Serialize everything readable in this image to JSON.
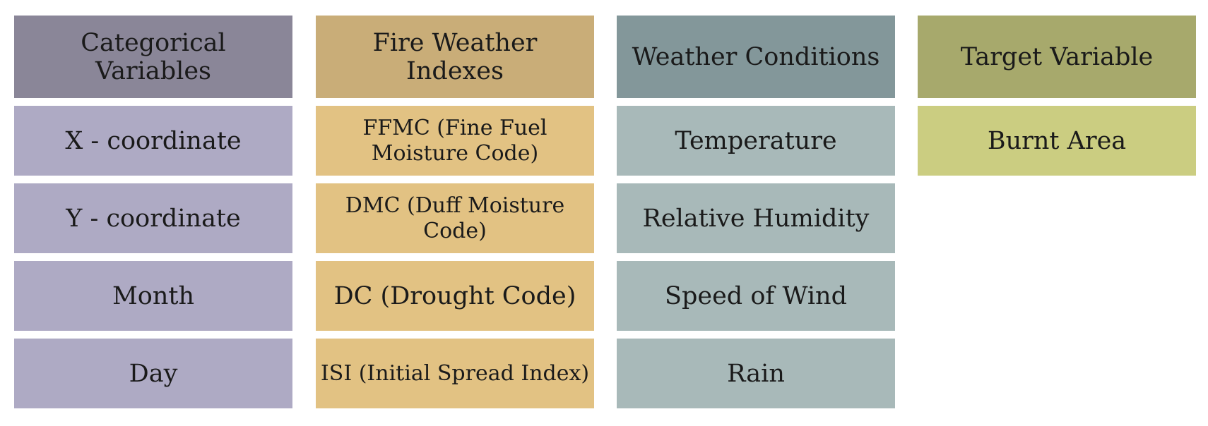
{
  "columns": [
    {
      "title": "Categorical Variables",
      "header_color": "#8a8698",
      "item_color": "#aeaac4",
      "items": [
        "X - coordinate",
        "Y - coordinate",
        "Month",
        "Day"
      ]
    },
    {
      "title": "Fire Weather Indexes",
      "header_color": "#c9ad78",
      "item_color": "#e2c283",
      "items": [
        "FFMC (Fine Fuel Moisture Code)",
        "DMC (Duff Moisture Code)",
        "DC (Drought Code)",
        "ISI (Initial Spread Index)"
      ]
    },
    {
      "title": "Weather Conditions",
      "header_color": "#83979a",
      "item_color": "#a8b9b9",
      "items": [
        "Temperature",
        "Relative Humidity",
        "Speed of Wind",
        "Rain"
      ]
    },
    {
      "title": "Target Variable",
      "header_color": "#a7a96c",
      "item_color": "#cbcd81",
      "items": [
        "Burnt Area"
      ]
    }
  ]
}
